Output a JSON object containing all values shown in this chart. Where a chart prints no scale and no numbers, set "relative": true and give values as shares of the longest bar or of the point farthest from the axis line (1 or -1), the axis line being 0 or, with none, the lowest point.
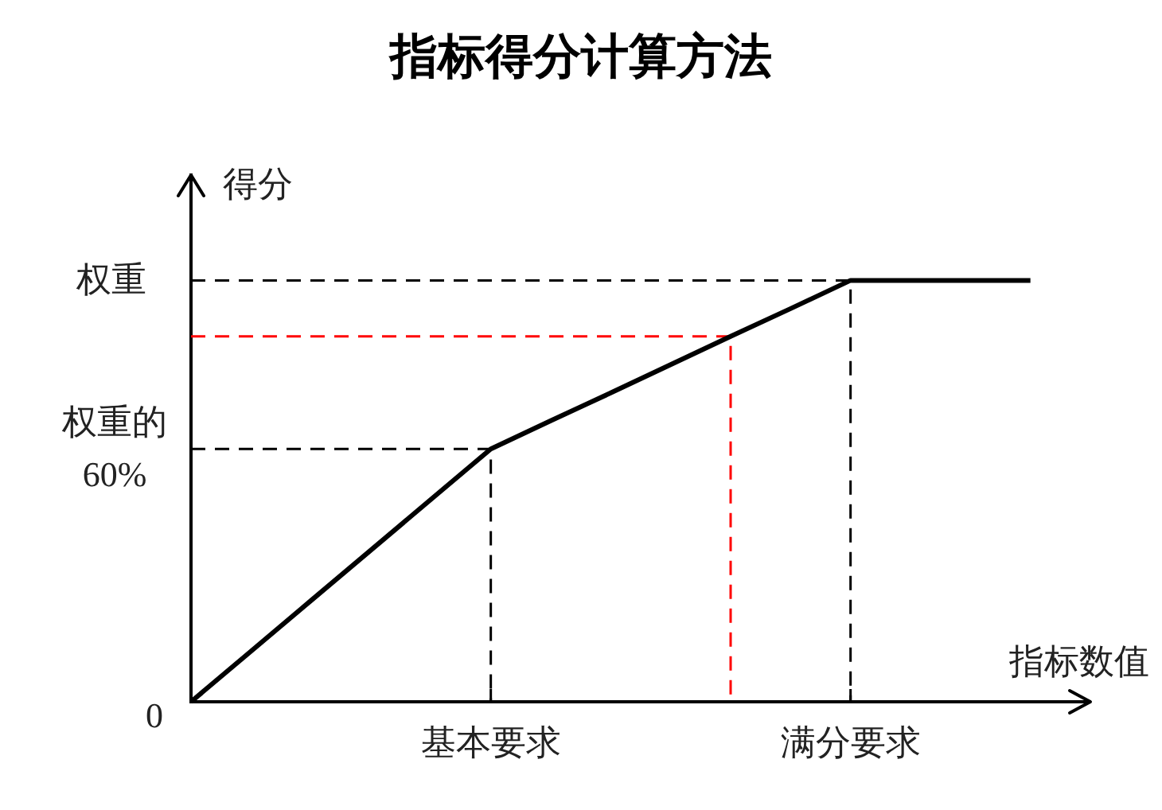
{
  "chart_data": {
    "type": "line",
    "relative": true,
    "title": "指标得分计算方法",
    "xlabel": "指标数值",
    "ylabel": "得分",
    "categories": [
      null,
      null,
      null,
      null,
      null,
      "基本要求",
      null,
      null,
      null,
      null,
      null,
      "满分要求",
      null,
      null,
      null,
      null
    ],
    "annotations": [
      "0",
      "权重的60%",
      "权重"
    ],
    "grid": false,
    "legend": false,
    "marker": "none",
    "series": [
      {
        "color": "#000000",
        "values": [
          0,
          0.12,
          0.24,
          0.36,
          0.48,
          0.6,
          0.667,
          0.733,
          0.8,
          0.867,
          0.933,
          1,
          1,
          1,
          1,
          null
        ]
      },
      {
        "type": "step",
        "line_style": "dashed",
        "color": "#000000",
        "values": [
          0.6,
          0.6,
          0.6,
          0.6,
          0.6,
          0,
          null,
          null,
          null,
          null,
          null,
          null,
          null,
          null,
          null,
          null
        ]
      },
      {
        "type": "step",
        "line_style": "dashed",
        "color": "#000000",
        "values": [
          1,
          1,
          1,
          1,
          1,
          1,
          1,
          1,
          1,
          1,
          1,
          0,
          null,
          null,
          null,
          null
        ]
      },
      {
        "type": "step",
        "line_style": "dashed",
        "color": "#ff0000",
        "values": [
          0.867,
          0.867,
          0.867,
          0.867,
          0.867,
          0.867,
          0.867,
          0.867,
          0.867,
          0,
          null,
          null,
          null,
          null,
          null,
          null
        ]
      }
    ]
  }
}
